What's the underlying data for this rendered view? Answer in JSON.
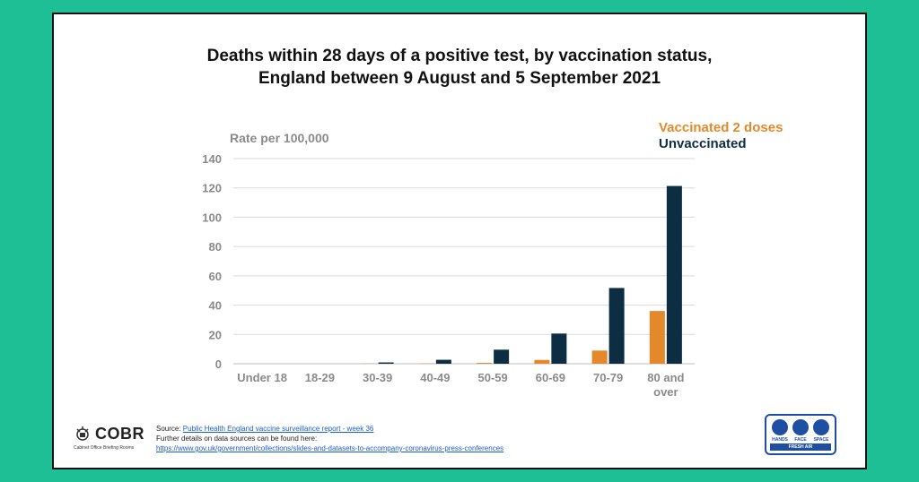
{
  "title": {
    "line1": "Deaths within 28 days of a positive test, by vaccination status,",
    "line2": "England between 9 August and 5 September 2021"
  },
  "chart_data": {
    "type": "bar",
    "ylabel": "Rate per 100,000",
    "ylim": [
      0,
      140
    ],
    "yticks": [
      0,
      20,
      40,
      60,
      80,
      100,
      120,
      140
    ],
    "grid": true,
    "legend_position": "top-right",
    "categories": [
      "Under 18",
      "18-29",
      "30-39",
      "40-49",
      "50-59",
      "60-69",
      "70-79",
      "80 and over"
    ],
    "category_lines": [
      [
        "Under 18"
      ],
      [
        "18-29"
      ],
      [
        "30-39"
      ],
      [
        "40-49"
      ],
      [
        "50-59"
      ],
      [
        "60-69"
      ],
      [
        "70-79"
      ],
      [
        "80 and",
        "over"
      ]
    ],
    "series": [
      {
        "name": "Vaccinated 2 doses",
        "color": "#e4892b",
        "values": [
          0,
          0,
          0.1,
          0.2,
          0.6,
          2.6,
          9,
          36
        ]
      },
      {
        "name": "Unvaccinated",
        "color": "#0d2e42",
        "values": [
          0,
          0,
          0.9,
          2.7,
          9.6,
          20.6,
          51.7,
          121.3
        ]
      }
    ]
  },
  "logo": {
    "name": "COBR",
    "subtitle": "Cabinet Office Briefing Rooms"
  },
  "source": {
    "prefix": "Source: ",
    "link_text": "Public Health England vaccine surveillance report - week 36",
    "further": "Further details on data sources can be found here:",
    "url_text": "https://www.gov.uk/government/collections/slides-and-datasets-to-accompany-coronavirus-press-conferences"
  },
  "badge": {
    "hands": "HANDS",
    "face": "FACE",
    "space": "SPACE",
    "fresh_air": "FRESH AIR"
  }
}
